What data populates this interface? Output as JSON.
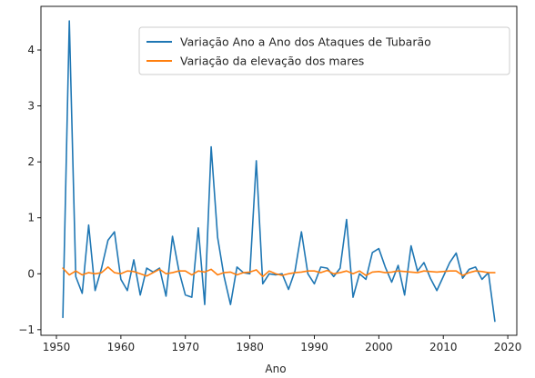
{
  "chart_data": {
    "type": "line",
    "title": "",
    "xlabel": "Ano",
    "ylabel": "",
    "xlim": [
      1947.6,
      2021.4
    ],
    "ylim": [
      -1.1,
      4.78
    ],
    "xticks": [
      1950,
      1960,
      1970,
      1980,
      1990,
      2000,
      2010,
      2020
    ],
    "yticks": [
      -1,
      0,
      1,
      2,
      3,
      4
    ],
    "ytick_labels": [
      "−1",
      "0",
      "1",
      "2",
      "3",
      "4"
    ],
    "grid": false,
    "legend_position": "top-right",
    "x": [
      1951,
      1952,
      1953,
      1954,
      1955,
      1956,
      1957,
      1958,
      1959,
      1960,
      1961,
      1962,
      1963,
      1964,
      1965,
      1966,
      1967,
      1968,
      1969,
      1970,
      1971,
      1972,
      1973,
      1974,
      1975,
      1976,
      1977,
      1978,
      1979,
      1980,
      1981,
      1982,
      1983,
      1984,
      1985,
      1986,
      1987,
      1988,
      1989,
      1990,
      1991,
      1992,
      1993,
      1994,
      1995,
      1996,
      1997,
      1998,
      1999,
      2000,
      2001,
      2002,
      2003,
      2004,
      2005,
      2006,
      2007,
      2008,
      2009,
      2010,
      2011,
      2012,
      2013,
      2014,
      2015,
      2016,
      2017,
      2018
    ],
    "series": [
      {
        "name": "Variação Ano a Ano dos Ataques de Tubarão",
        "color": "#1f77b4",
        "values": [
          -0.78,
          4.52,
          -0.05,
          -0.35,
          0.87,
          -0.3,
          0.1,
          0.6,
          0.75,
          -0.1,
          -0.3,
          0.25,
          -0.38,
          0.1,
          0.03,
          0.1,
          -0.4,
          0.67,
          0.05,
          -0.38,
          -0.42,
          0.82,
          -0.55,
          2.27,
          0.65,
          -0.05,
          -0.55,
          0.12,
          0.02,
          0.0,
          2.02,
          -0.18,
          0.0,
          -0.02,
          0.0,
          -0.28,
          0.05,
          0.75,
          0.0,
          -0.18,
          0.12,
          0.1,
          -0.05,
          0.1,
          0.97,
          -0.42,
          0.0,
          -0.1,
          0.38,
          0.45,
          0.12,
          -0.15,
          0.15,
          -0.38,
          0.5,
          0.05,
          0.2,
          -0.08,
          -0.3,
          -0.05,
          0.2,
          0.37,
          -0.08,
          0.08,
          0.12,
          -0.1,
          0.02,
          -0.85
        ]
      },
      {
        "name": "Variação da elevação dos mares",
        "color": "#ff7f0e",
        "values": [
          0.1,
          -0.02,
          0.05,
          -0.02,
          0.02,
          0.0,
          0.02,
          0.12,
          0.02,
          0.0,
          0.05,
          0.04,
          0.0,
          -0.04,
          0.02,
          0.08,
          0.0,
          0.02,
          0.05,
          0.05,
          -0.02,
          0.05,
          0.03,
          0.08,
          -0.02,
          0.02,
          0.03,
          -0.02,
          0.02,
          0.03,
          0.07,
          -0.05,
          0.05,
          0.0,
          -0.03,
          0.0,
          0.02,
          0.03,
          0.05,
          0.05,
          0.02,
          0.06,
          0.0,
          0.02,
          0.05,
          0.0,
          0.05,
          -0.03,
          0.03,
          0.04,
          0.02,
          0.03,
          0.05,
          0.04,
          0.03,
          0.02,
          0.05,
          0.04,
          0.03,
          0.04,
          0.05,
          0.05,
          -0.03,
          0.02,
          0.05,
          0.04,
          0.02,
          0.02
        ]
      }
    ]
  }
}
